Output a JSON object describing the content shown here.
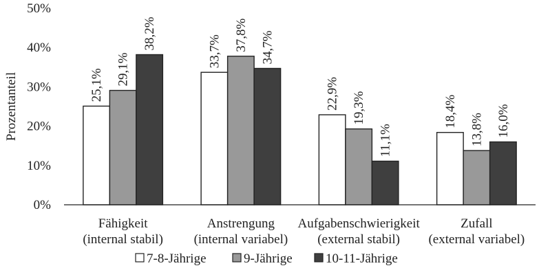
{
  "chart_data": {
    "type": "bar",
    "ylabel": "Prozentanteil",
    "ylim": [
      0,
      50
    ],
    "yticks": [
      "0%",
      "10%",
      "20%",
      "30%",
      "40%",
      "50%"
    ],
    "grid": false,
    "legend_position": "bottom",
    "categories": [
      [
        "Fähigkeit",
        "(internal stabil)"
      ],
      [
        "Anstrengung",
        "(internal variabel)"
      ],
      [
        "Aufgabenschwierigkeit",
        "(external stabil)"
      ],
      [
        "Zufall",
        "(external variabel)"
      ]
    ],
    "series": [
      {
        "name": "7-8-Jährige",
        "color": "#ffffff",
        "values": [
          25.1,
          33.7,
          22.9,
          18.4
        ],
        "labels": [
          "25,1%",
          "33,7%",
          "22,9%",
          "18,4%"
        ]
      },
      {
        "name": "9-Jährige",
        "color": "#999999",
        "values": [
          29.1,
          37.8,
          19.3,
          13.8
        ],
        "labels": [
          "29,1%",
          "37,8%",
          "19,3%",
          "13,8%"
        ]
      },
      {
        "name": "10-11-Jährige",
        "color": "#3f3f3f",
        "values": [
          38.2,
          34.7,
          11.1,
          16.0
        ],
        "labels": [
          "38,2%",
          "34,7%",
          "11,1%",
          "16,0%"
        ]
      }
    ]
  }
}
